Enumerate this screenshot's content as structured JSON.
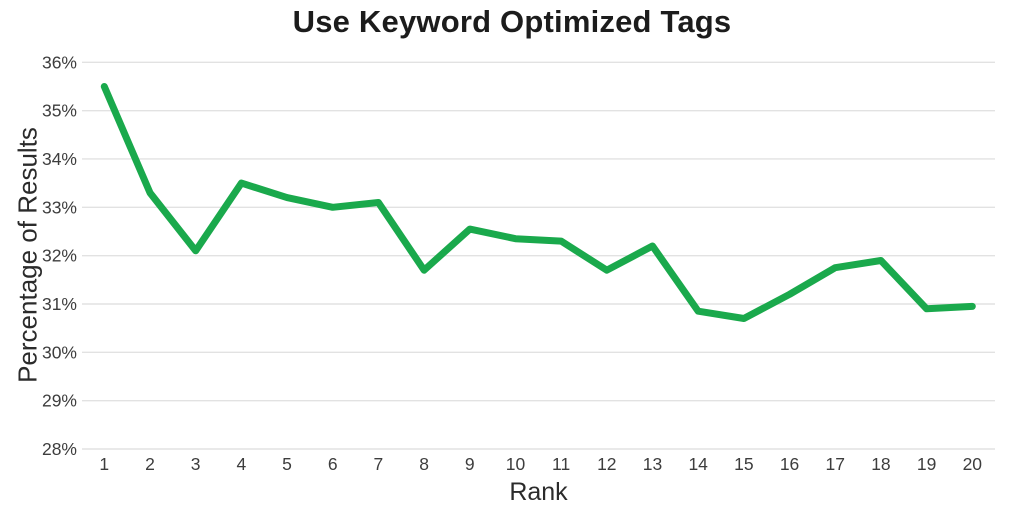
{
  "chart_data": {
    "type": "line",
    "title": "Use Keyword Optimized Tags",
    "xlabel": "Rank",
    "ylabel": "Percentage of Results",
    "x": [
      1,
      2,
      3,
      4,
      5,
      6,
      7,
      8,
      9,
      10,
      11,
      12,
      13,
      14,
      15,
      16,
      17,
      18,
      19,
      20
    ],
    "series": [
      {
        "name": "Percentage of Results",
        "values": [
          35.5,
          33.3,
          32.1,
          33.5,
          33.2,
          33.0,
          33.1,
          31.7,
          32.55,
          32.35,
          32.3,
          31.7,
          32.2,
          30.85,
          30.7,
          31.2,
          31.75,
          31.9,
          30.9,
          30.95
        ]
      }
    ],
    "ylim": [
      28,
      36
    ],
    "ytick_values": [
      36,
      35,
      34,
      33,
      32,
      31,
      30,
      29,
      28
    ],
    "ytick_labels": [
      "36%",
      "35%",
      "34%",
      "33%",
      "32%",
      "31%",
      "30%",
      "29%",
      "28%"
    ],
    "grid": "horizontal",
    "legend": "none",
    "colors": {
      "line": "#1aa94c",
      "gridline": "#e2e2e2",
      "tick_text": "#3d3d3d",
      "title_text": "#1c1c1c",
      "background": "#ffffff"
    }
  }
}
